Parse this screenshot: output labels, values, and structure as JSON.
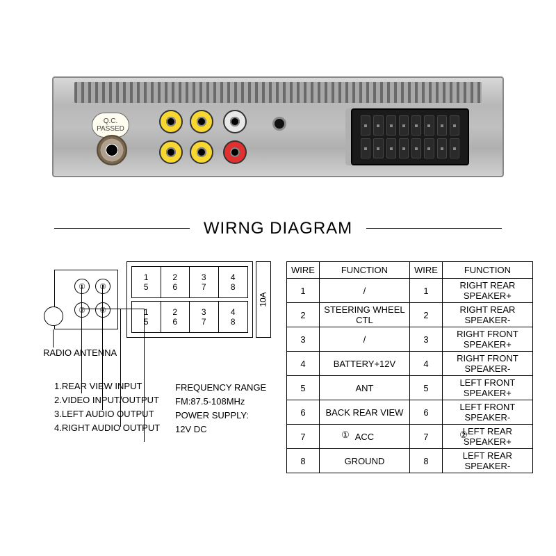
{
  "title": "WIRNG DIAGRAM",
  "qc_label_line1": "Q.C.",
  "qc_label_line2": "PASSED",
  "fuse_label": "10A",
  "pins_top": [
    "1",
    "2",
    "3",
    "4"
  ],
  "pins_top2": [
    "5",
    "6",
    "7",
    "8"
  ],
  "pins_bot": [
    "1",
    "2",
    "3",
    "4"
  ],
  "pins_bot2": [
    "5",
    "6",
    "7",
    "8"
  ],
  "jack_labels": {
    "1": "①",
    "2": "②",
    "3": "③",
    "4": "④"
  },
  "radio_antenna_label": "RADIO ANTENNA",
  "left_labels": [
    "1.REAR VIEW INPUT",
    "2.VIDEO INPUT/OUTPUT",
    "3.LEFT AUDIO OUTPUT",
    "4.RIGHT AUDIO OUTPUT"
  ],
  "mid_labels": {
    "freq_title": "FREQUENCY  RANGE",
    "freq_value": "FM:87.5-108MHz",
    "power_title": "POWER SUPPLY:",
    "power_value": "12V DC"
  },
  "table": {
    "headers": [
      "WIRE",
      "FUNCTION",
      "WIRE",
      "FUNCTION"
    ],
    "rows": [
      [
        "1",
        "/",
        "1",
        "RIGHT REAR SPEAKER+"
      ],
      [
        "2",
        "STEERING WHEEL CTL",
        "2",
        "RIGHT REAR  SPEAKER-"
      ],
      [
        "3",
        "/",
        "3",
        "RIGHT FRONT SPEAKER+"
      ],
      [
        "4",
        "BATTERY+12V",
        "4",
        "RIGHT FRONT SPEAKER-"
      ],
      [
        "5",
        "ANT",
        "5",
        "LEFT FRONT SPEAKER+"
      ],
      [
        "6",
        "BACK REAR VIEW",
        "6",
        "LEFT FRONT SPEAKER-"
      ],
      [
        "7",
        "ACC",
        "7",
        "LEFT REAR SPEAKER+"
      ],
      [
        "8",
        "GROUND",
        "8",
        "LEFT REAR SPEAKER-"
      ]
    ],
    "footnote_1": "①",
    "footnote_2": "②"
  },
  "colors": {
    "rca_yellow": "#f8d830",
    "rca_red": "#e03030",
    "rca_white": "#e8e8e8",
    "casing_light": "#d8d8d8",
    "casing_dark": "#b0b0b0",
    "iso_black": "#1a1a1a",
    "text": "#000000",
    "background": "#ffffff"
  }
}
